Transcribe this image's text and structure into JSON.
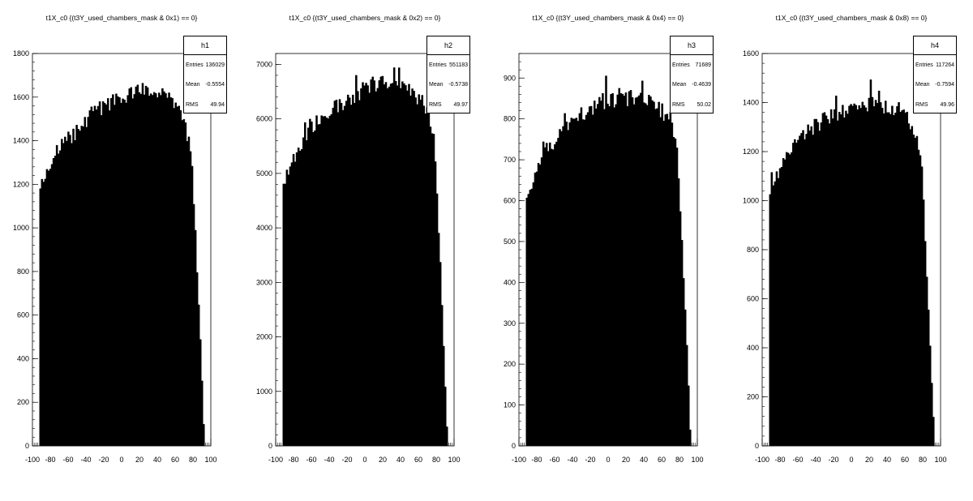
{
  "chart_data": [
    {
      "type": "bar",
      "title": "t1X_c0  {(t3Y_used_chambers_mask & 0x1) == 0}",
      "stats": {
        "name": "h1",
        "entries_label": "Entries",
        "entries": "136029",
        "mean_label": "Mean",
        "mean": "-0.5554",
        "rms_label": "RMS",
        "rms": "49.94"
      },
      "xlim": [
        -100,
        100
      ],
      "ylim": [
        0,
        1800
      ],
      "xticks": [
        -100,
        -80,
        -60,
        -40,
        -20,
        0,
        20,
        40,
        60,
        80,
        100
      ],
      "xtick_labels": [
        "-100",
        "-80",
        "-60",
        "-40",
        "-20",
        "0",
        "20",
        "40",
        "60",
        "80",
        "100"
      ],
      "yticks": [
        0,
        200,
        400,
        600,
        800,
        1000,
        1200,
        1400,
        1600,
        1800
      ],
      "ytick_labels": [
        "0",
        "200",
        "400",
        "600",
        "800",
        "1000",
        "1200",
        "1400",
        "1600",
        "1800"
      ],
      "x": [
        -90,
        -70,
        -50,
        -30,
        -10,
        10,
        30,
        50,
        70,
        78,
        82,
        86,
        90,
        92
      ],
      "values": [
        1200,
        1370,
        1440,
        1540,
        1580,
        1620,
        1640,
        1600,
        1500,
        1350,
        1040,
        700,
        330,
        100
      ]
    },
    {
      "type": "bar",
      "title": "t1X_c0  {(t3Y_used_chambers_mask & 0x2) == 0}",
      "stats": {
        "name": "h2",
        "entries_label": "Entries",
        "entries": "551183",
        "mean_label": "Mean",
        "mean": "-0.5738",
        "rms_label": "RMS",
        "rms": "49.97"
      },
      "xlim": [
        -100,
        100
      ],
      "ylim": [
        0,
        7200
      ],
      "xticks": [
        -100,
        -80,
        -60,
        -40,
        -20,
        0,
        20,
        40,
        60,
        80,
        100
      ],
      "xtick_labels": [
        "-100",
        "-80",
        "-60",
        "-40",
        "-20",
        "0",
        "20",
        "40",
        "60",
        "80",
        "100"
      ],
      "yticks": [
        0,
        1000,
        2000,
        3000,
        4000,
        5000,
        6000,
        7000
      ],
      "ytick_labels": [
        "0",
        "1000",
        "2000",
        "3000",
        "4000",
        "5000",
        "6000",
        "7000"
      ],
      "x": [
        -90,
        -70,
        -50,
        -30,
        -10,
        10,
        30,
        50,
        70,
        78,
        82,
        86,
        90,
        92
      ],
      "values": [
        4900,
        5600,
        6000,
        6250,
        6450,
        6650,
        6700,
        6600,
        6200,
        5600,
        4300,
        2800,
        1200,
        350
      ]
    },
    {
      "type": "bar",
      "title": "t1X_c0  {(t3Y_used_chambers_mask & 0x4) == 0}",
      "stats": {
        "name": "h3",
        "entries_label": "Entries",
        "entries": "71689",
        "mean_label": "Mean",
        "mean": "-0.4639",
        "rms_label": "RMS",
        "rms": "50.02"
      },
      "xlim": [
        -100,
        100
      ],
      "ylim": [
        0,
        960
      ],
      "xticks": [
        -100,
        -80,
        -60,
        -40,
        -20,
        0,
        20,
        40,
        60,
        80,
        100
      ],
      "xtick_labels": [
        "-100",
        "-80",
        "-60",
        "-40",
        "-20",
        "0",
        "20",
        "40",
        "60",
        "80",
        "100"
      ],
      "yticks": [
        0,
        100,
        200,
        300,
        400,
        500,
        600,
        700,
        800,
        900
      ],
      "ytick_labels": [
        "0",
        "100",
        "200",
        "300",
        "400",
        "500",
        "600",
        "700",
        "800",
        "900"
      ],
      "x": [
        -90,
        -70,
        -50,
        -30,
        -10,
        10,
        30,
        50,
        70,
        78,
        82,
        86,
        90,
        92
      ],
      "values": [
        620,
        720,
        770,
        810,
        840,
        850,
        850,
        840,
        800,
        720,
        540,
        360,
        160,
        40
      ]
    },
    {
      "type": "bar",
      "title": "t1X_c0  {(t3Y_used_chambers_mask & 0x8) == 0}",
      "stats": {
        "name": "h4",
        "entries_label": "Entries",
        "entries": "117264",
        "mean_label": "Mean",
        "mean": "-0.7594",
        "rms_label": "RMS",
        "rms": "49.96"
      },
      "xlim": [
        -100,
        100
      ],
      "ylim": [
        0,
        1600
      ],
      "xticks": [
        -100,
        -80,
        -60,
        -40,
        -20,
        0,
        20,
        40,
        60,
        80,
        100
      ],
      "xtick_labels": [
        "-100",
        "-80",
        "-60",
        "-40",
        "-20",
        "0",
        "20",
        "40",
        "60",
        "80",
        "100"
      ],
      "yticks": [
        0,
        200,
        400,
        600,
        800,
        1000,
        1200,
        1400,
        1600
      ],
      "ytick_labels": [
        "0",
        "200",
        "400",
        "600",
        "800",
        "1000",
        "1200",
        "1400",
        "1600"
      ],
      "x": [
        -90,
        -70,
        -50,
        -30,
        -10,
        10,
        30,
        50,
        70,
        78,
        82,
        86,
        90,
        92
      ],
      "values": [
        1050,
        1200,
        1280,
        1330,
        1370,
        1380,
        1390,
        1380,
        1300,
        1180,
        900,
        600,
        280,
        70
      ]
    }
  ]
}
